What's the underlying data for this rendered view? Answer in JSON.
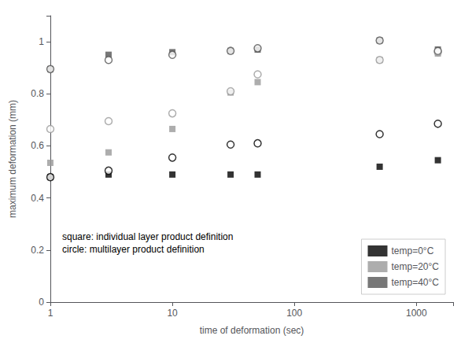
{
  "chart_data": {
    "type": "scatter",
    "xlabel": "time of deformation (sec)",
    "ylabel": "maximum deformation (mm)",
    "annotation": "square: individual layer product definition\ncircle: multilayer product definition",
    "log": "x",
    "xlim": [
      1,
      2000
    ],
    "xticks": [
      1,
      10,
      100,
      1000
    ],
    "ylim": [
      0.0,
      1.1
    ],
    "yticks": [
      0.0,
      0.2,
      0.4,
      0.6,
      0.8,
      1.0
    ],
    "grid": false,
    "legend": "lower right",
    "x": [
      1,
      3,
      10,
      30,
      50,
      500,
      1500
    ],
    "series": [
      {
        "name": "temp=0°C",
        "color": "#000000",
        "marker": "square",
        "values": [
          0.48,
          0.49,
          0.49,
          0.49,
          0.49,
          0.52,
          0.545
        ]
      },
      {
        "name": "temp=20°C",
        "color": "#999999",
        "marker": "square",
        "values": [
          0.535,
          0.575,
          0.665,
          0.805,
          0.845,
          0.93,
          0.955
        ]
      },
      {
        "name": "temp=40°C",
        "color": "#555555",
        "marker": "square",
        "values": [
          0.895,
          0.95,
          0.96,
          0.965,
          0.97,
          1.005,
          0.97
        ]
      },
      {
        "color": "#000000",
        "marker": "circle",
        "values": [
          0.48,
          0.505,
          0.555,
          0.605,
          0.61,
          0.645,
          0.685
        ]
      },
      {
        "color": "#999999",
        "marker": "circle",
        "values": [
          0.665,
          0.695,
          0.725,
          0.81,
          0.875,
          0.93,
          0.96
        ]
      },
      {
        "color": "#555555",
        "marker": "circle",
        "values": [
          0.895,
          0.93,
          0.95,
          0.965,
          0.975,
          1.005,
          0.965
        ]
      }
    ]
  }
}
